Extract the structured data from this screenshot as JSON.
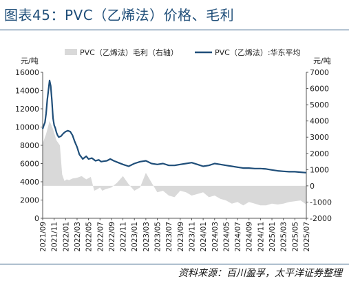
{
  "title": "图表45：PVC（乙烯法）价格、毛利",
  "source": "资料来源：百川盈孚，太平洋证券整理",
  "chart_data": {
    "type": "line",
    "left_unit": "元/吨",
    "right_unit": "元/吨",
    "left_ylim": [
      0,
      16000
    ],
    "left_ticks": [
      0,
      2000,
      4000,
      6000,
      8000,
      10000,
      12000,
      14000,
      16000
    ],
    "right_ylim": [
      -2000,
      7000
    ],
    "right_ticks": [
      -2000,
      -1000,
      0,
      1000,
      2000,
      3000,
      4000,
      5000,
      6000,
      7000
    ],
    "x_ticks": [
      "2021/09",
      "2021/11",
      "2022/01",
      "2022/03",
      "2022/05",
      "2022/07",
      "2022/09",
      "2022/11",
      "2023/01",
      "2023/03",
      "2023/05",
      "2023/07",
      "2023/09",
      "2023/11",
      "2024/01",
      "2024/03",
      "2024/05",
      "2024/07",
      "2024/09",
      "2024/11",
      "2025/01",
      "2025/03",
      "2025/05",
      "2025/07"
    ],
    "legend": {
      "position": "top"
    },
    "grid": false,
    "colors": {
      "price": "#1f4e79",
      "margin": "#d9d9d9"
    },
    "series": [
      {
        "name": "PVC（乙烯法）:华东平均",
        "axis": "left",
        "style": "line",
        "x": [
          0,
          0.1,
          0.2,
          0.3,
          0.4,
          0.5,
          0.6,
          0.7,
          0.8,
          0.9,
          1.0,
          1.1,
          1.2,
          1.3,
          1.4,
          1.6,
          1.8,
          2.0,
          2.2,
          2.4,
          2.6,
          2.8,
          3.0,
          3.2,
          3.5,
          3.8,
          4.0,
          4.3,
          4.6,
          4.9,
          5.1,
          5.3,
          5.6,
          5.9,
          6.2,
          6.6,
          7.0,
          7.5,
          8.0,
          8.5,
          9.0,
          9.5,
          10.0,
          10.5,
          11.0,
          11.5,
          12.0,
          12.5,
          13.0,
          13.5,
          14.0,
          14.5,
          15.0,
          15.5,
          16.0,
          16.5,
          17.0,
          17.5,
          18.0,
          18.5,
          19.0,
          19.5,
          20.0,
          20.5,
          21.0,
          21.5,
          22.0,
          22.5,
          23.0
        ],
        "values": [
          9800,
          10200,
          10500,
          11500,
          13000,
          14000,
          15100,
          14500,
          13000,
          11000,
          10200,
          9900,
          9400,
          9100,
          8900,
          9000,
          9300,
          9500,
          9600,
          9500,
          9100,
          8400,
          7800,
          7000,
          6500,
          6800,
          6500,
          6600,
          6300,
          6400,
          6200,
          6250,
          6300,
          6500,
          6300,
          6100,
          5900,
          5700,
          6000,
          6200,
          6300,
          6000,
          5900,
          6000,
          5800,
          5800,
          5900,
          6000,
          6100,
          5900,
          5700,
          5800,
          6000,
          5900,
          5800,
          5700,
          5600,
          5500,
          5500,
          5450,
          5450,
          5400,
          5300,
          5200,
          5150,
          5100,
          5100,
          5050,
          5000
        ]
      },
      {
        "name": "PVC（乙烯法）毛利（右轴）",
        "axis": "right",
        "style": "area",
        "x": [
          0,
          0.3,
          0.6,
          0.9,
          1.2,
          1.5,
          1.7,
          1.9,
          2.1,
          2.3,
          2.6,
          3.0,
          3.4,
          3.8,
          4.2,
          4.5,
          4.8,
          5.0,
          5.2,
          5.5,
          6.0,
          6.5,
          7.0,
          7.5,
          8.0,
          8.5,
          9.0,
          9.5,
          10.0,
          10.5,
          11.0,
          11.5,
          12.0,
          12.5,
          13.0,
          13.5,
          14.0,
          14.5,
          15.0,
          15.5,
          16.0,
          16.5,
          17.0,
          17.5,
          18.0,
          18.5,
          19.0,
          19.5,
          20.0,
          20.5,
          21.0,
          21.5,
          22.0,
          22.5,
          23.0
        ],
        "values": [
          2600,
          3200,
          4000,
          3500,
          2800,
          2500,
          700,
          300,
          400,
          350,
          450,
          500,
          600,
          400,
          550,
          -300,
          -200,
          -100,
          -300,
          -200,
          -100,
          200,
          600,
          100,
          -300,
          -100,
          800,
          200,
          -400,
          -300,
          -600,
          -700,
          -300,
          -400,
          -600,
          -500,
          -400,
          -700,
          -600,
          -800,
          -900,
          -1100,
          -1000,
          -1200,
          -1000,
          -1100,
          -1200,
          -1200,
          -1100,
          -1150,
          -1100,
          -1000,
          -950,
          -900,
          -1150
        ]
      }
    ]
  }
}
